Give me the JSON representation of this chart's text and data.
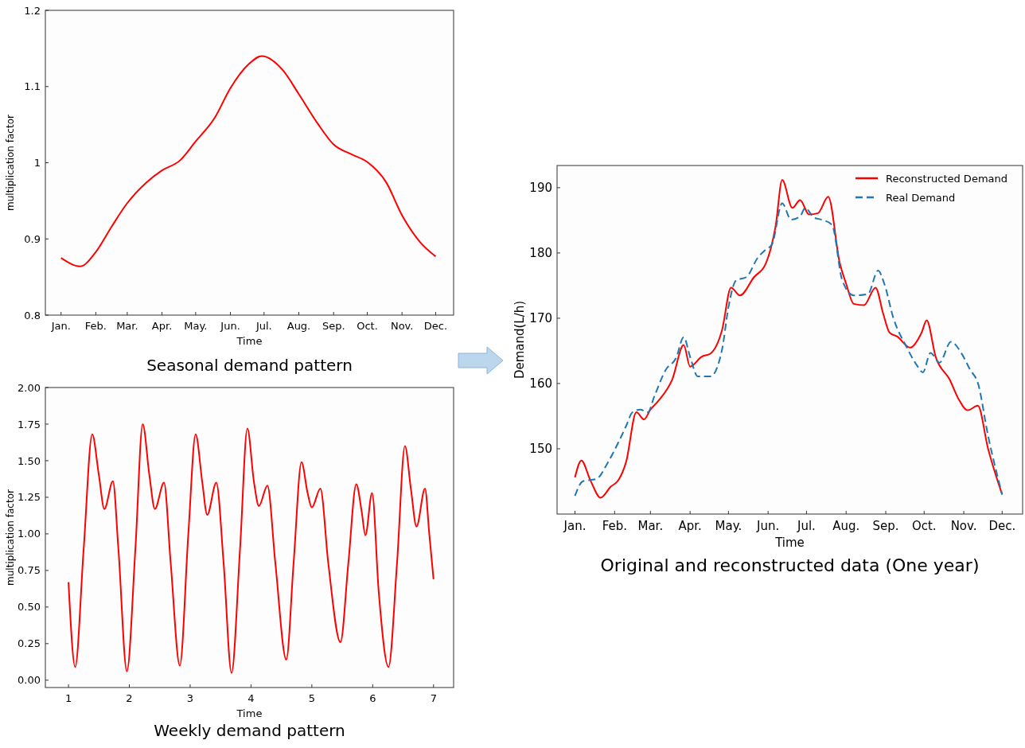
{
  "chart_data": [
    {
      "type": "line",
      "title": "Seasonal demand pattern",
      "xlabel": "Time",
      "ylabel": "multiplication factor",
      "xlim": [
        "--01-01",
        "--12-31"
      ],
      "ylim": [
        0.8,
        1.2
      ],
      "yticks": [
        0.8,
        0.9,
        1.0,
        1.1,
        1.2
      ],
      "xticks": [
        {
          "value": "--01-15",
          "label": "Jan."
        },
        {
          "value": "--02-15",
          "label": "Feb."
        },
        {
          "value": "--03-15",
          "label": "Mar."
        },
        {
          "value": "--04-15",
          "label": "Apr."
        },
        {
          "value": "--05-15",
          "label": "May."
        },
        {
          "value": "--06-15",
          "label": "Jun."
        },
        {
          "value": "--07-15",
          "label": "Jul."
        },
        {
          "value": "--08-15",
          "label": "Aug."
        },
        {
          "value": "--09-15",
          "label": "Sep."
        },
        {
          "value": "--10-15",
          "label": "Oct."
        },
        {
          "value": "--11-15",
          "label": "Nov."
        },
        {
          "value": "--12-15",
          "label": "Dec."
        }
      ],
      "x": [
        "--01-15",
        "--02-01",
        "--02-15",
        "--03-01",
        "--03-15",
        "--04-01",
        "--04-15",
        "--05-01",
        "--05-15",
        "--06-01",
        "--06-15",
        "--07-01",
        "--07-13",
        "--08-01",
        "--08-15",
        "--09-01",
        "--09-15",
        "--10-01",
        "--10-15",
        "--11-01",
        "--11-15",
        "--12-01",
        "--12-15"
      ],
      "series": [
        {
          "color": "#ff0000",
          "line_style": "solid",
          "values": [
            0.875,
            0.864,
            0.883,
            0.916,
            0.947,
            0.974,
            0.99,
            1.003,
            1.028,
            1.059,
            1.098,
            1.129,
            1.14,
            1.121,
            1.09,
            1.051,
            1.024,
            1.011,
            1.001,
            0.974,
            0.931,
            0.896,
            0.877
          ]
        }
      ],
      "grid": false,
      "legend": false,
      "marker": "none"
    },
    {
      "type": "line",
      "title": "Weekly demand pattern",
      "xlabel": "Time",
      "ylabel": "multiplication factor",
      "xlim": [
        0.62,
        7.33
      ],
      "ylim": [
        -0.05,
        2.0
      ],
      "xticks": [
        1,
        2,
        3,
        4,
        5,
        6,
        7
      ],
      "yticks": [
        {
          "value": 0,
          "label": "0.00"
        },
        {
          "value": 0.25,
          "label": "0.25"
        },
        {
          "value": 0.5,
          "label": "0.50"
        },
        {
          "value": 0.75,
          "label": "0.75"
        },
        {
          "value": 1,
          "label": "1.00"
        },
        {
          "value": 1.25,
          "label": "1.25"
        },
        {
          "value": 1.5,
          "label": "1.50"
        },
        {
          "value": 1.75,
          "label": "1.75"
        },
        {
          "value": 2,
          "label": "2.00"
        }
      ],
      "x": [
        1.0,
        1.11,
        1.25,
        1.39,
        1.5,
        1.59,
        1.73,
        1.82,
        1.96,
        2.1,
        2.22,
        2.33,
        2.42,
        2.57,
        2.68,
        2.83,
        2.97,
        3.09,
        3.2,
        3.28,
        3.43,
        3.55,
        3.68,
        3.82,
        3.94,
        4.05,
        4.13,
        4.27,
        4.4,
        4.58,
        4.7,
        4.83,
        4.93,
        5.0,
        5.14,
        5.27,
        5.47,
        5.6,
        5.73,
        5.82,
        5.88,
        5.99,
        6.1,
        6.26,
        6.4,
        6.53,
        6.63,
        6.72,
        6.86,
        6.93,
        7.0
      ],
      "series": [
        {
          "color": "#ff0000",
          "line_style": "solid",
          "values": [
            0.67,
            0.09,
            0.9,
            1.68,
            1.4,
            1.17,
            1.36,
            0.9,
            0.06,
            0.9,
            1.75,
            1.4,
            1.17,
            1.35,
            0.8,
            0.1,
            1.0,
            1.68,
            1.35,
            1.13,
            1.35,
            0.8,
            0.05,
            0.9,
            1.72,
            1.35,
            1.19,
            1.33,
            0.8,
            0.14,
            0.8,
            1.49,
            1.28,
            1.18,
            1.31,
            0.8,
            0.26,
            0.8,
            1.34,
            1.15,
            0.99,
            1.28,
            0.6,
            0.09,
            0.8,
            1.6,
            1.3,
            1.05,
            1.31,
            1.0,
            0.69
          ]
        }
      ],
      "grid": false,
      "legend": false,
      "marker": "none"
    },
    {
      "type": "line",
      "title": "Original and reconstructed data (One year)",
      "xlabel": "Time",
      "ylabel": "Demand(L/h)",
      "xlim": [
        "--01-01",
        "--12-31"
      ],
      "ylim": [
        140,
        193.4
      ],
      "yticks": [
        150,
        160,
        170,
        180,
        190
      ],
      "xticks": [
        {
          "value": "--01-15",
          "label": "Jan."
        },
        {
          "value": "--02-15",
          "label": "Feb."
        },
        {
          "value": "--03-15",
          "label": "Mar."
        },
        {
          "value": "--04-15",
          "label": "Apr."
        },
        {
          "value": "--05-15",
          "label": "May."
        },
        {
          "value": "--06-15",
          "label": "Jun."
        },
        {
          "value": "--07-15",
          "label": "Jul."
        },
        {
          "value": "--08-15",
          "label": "Aug."
        },
        {
          "value": "--09-15",
          "label": "Sep."
        },
        {
          "value": "--10-15",
          "label": "Oct."
        },
        {
          "value": "--11-15",
          "label": "Nov."
        },
        {
          "value": "--12-15",
          "label": "Dec."
        }
      ],
      "series": [
        {
          "name": "Reconstructed Demand",
          "color": "#ff0000",
          "line_style": "solid",
          "x": [
            "--01-15",
            "--01-20",
            "--01-27",
            "--02-04",
            "--02-12",
            "--02-18",
            "--02-24",
            "--03-04",
            "--03-10",
            "--03-15",
            "--03-21",
            "--04-01",
            "--04-10",
            "--04-15",
            "--04-24",
            "--05-01",
            "--05-10",
            "--05-17",
            "--05-24",
            "--06-04",
            "--06-13",
            "--06-21",
            "--06-26",
            "--07-04",
            "--07-10",
            "--07-17",
            "--07-24",
            "--08-01",
            "--08-10",
            "--08-15",
            "--08-21",
            "--08-29",
            "--09-07",
            "--09-13",
            "--09-18",
            "--09-24",
            "--10-04",
            "--10-13",
            "--10-17",
            "--10-24",
            "--11-04",
            "--11-11",
            "--11-18",
            "--11-26",
            "--12-04",
            "--12-15"
          ],
          "values": [
            145.6,
            148.2,
            145.2,
            142.5,
            144.2,
            145.2,
            148,
            155.6,
            154.5,
            156,
            157.3,
            160.6,
            165.9,
            162.6,
            164.1,
            164.6,
            168.2,
            174.7,
            173.5,
            176.3,
            178.3,
            184.3,
            191.2,
            186.9,
            188.1,
            185.9,
            186.1,
            188.6,
            178.5,
            175.3,
            172.2,
            172,
            174.7,
            170.7,
            167.8,
            167.2,
            165.5,
            167.8,
            169.7,
            164.1,
            160.6,
            157.6,
            155.9,
            156.6,
            150,
            143
          ]
        },
        {
          "name": "Real Demand",
          "color": "#1f77b4",
          "line_style": "dashed",
          "x": [
            "--01-15",
            "--01-21",
            "--02-01",
            "--02-10",
            "--02-18",
            "--02-24",
            "--03-01",
            "--03-07",
            "--03-13",
            "--03-18",
            "--03-27",
            "--04-04",
            "--04-10",
            "--04-15",
            "--04-21",
            "--05-01",
            "--05-10",
            "--05-15",
            "--05-21",
            "--05-29",
            "--06-07",
            "--06-13",
            "--06-18",
            "--06-26",
            "--07-03",
            "--07-10",
            "--07-14",
            "--07-21",
            "--07-27",
            "--08-04",
            "--08-12",
            "--08-21",
            "--09-01",
            "--09-09",
            "--09-14",
            "--09-21",
            "--10-01",
            "--10-10",
            "--10-14",
            "--10-20",
            "--10-27",
            "--11-05",
            "--11-13",
            "--11-20",
            "--11-26",
            "--12-04",
            "--12-15"
          ],
          "values": [
            142.8,
            145,
            145.4,
            148,
            151,
            153.5,
            155.6,
            156,
            155.6,
            158,
            162.1,
            163.9,
            167.1,
            164.1,
            161.1,
            161.1,
            165.2,
            171.7,
            175.8,
            176.3,
            179.3,
            180.5,
            181.3,
            187.6,
            185.1,
            185.6,
            186.9,
            185.4,
            185.1,
            184.3,
            175.8,
            173.5,
            173.7,
            177.3,
            175.2,
            170,
            165.7,
            162.6,
            161.7,
            164.7,
            163.2,
            166.4,
            164.7,
            162.1,
            160.1,
            152,
            143
          ]
        }
      ],
      "grid": false,
      "legend": "top right",
      "marker": "none"
    }
  ]
}
